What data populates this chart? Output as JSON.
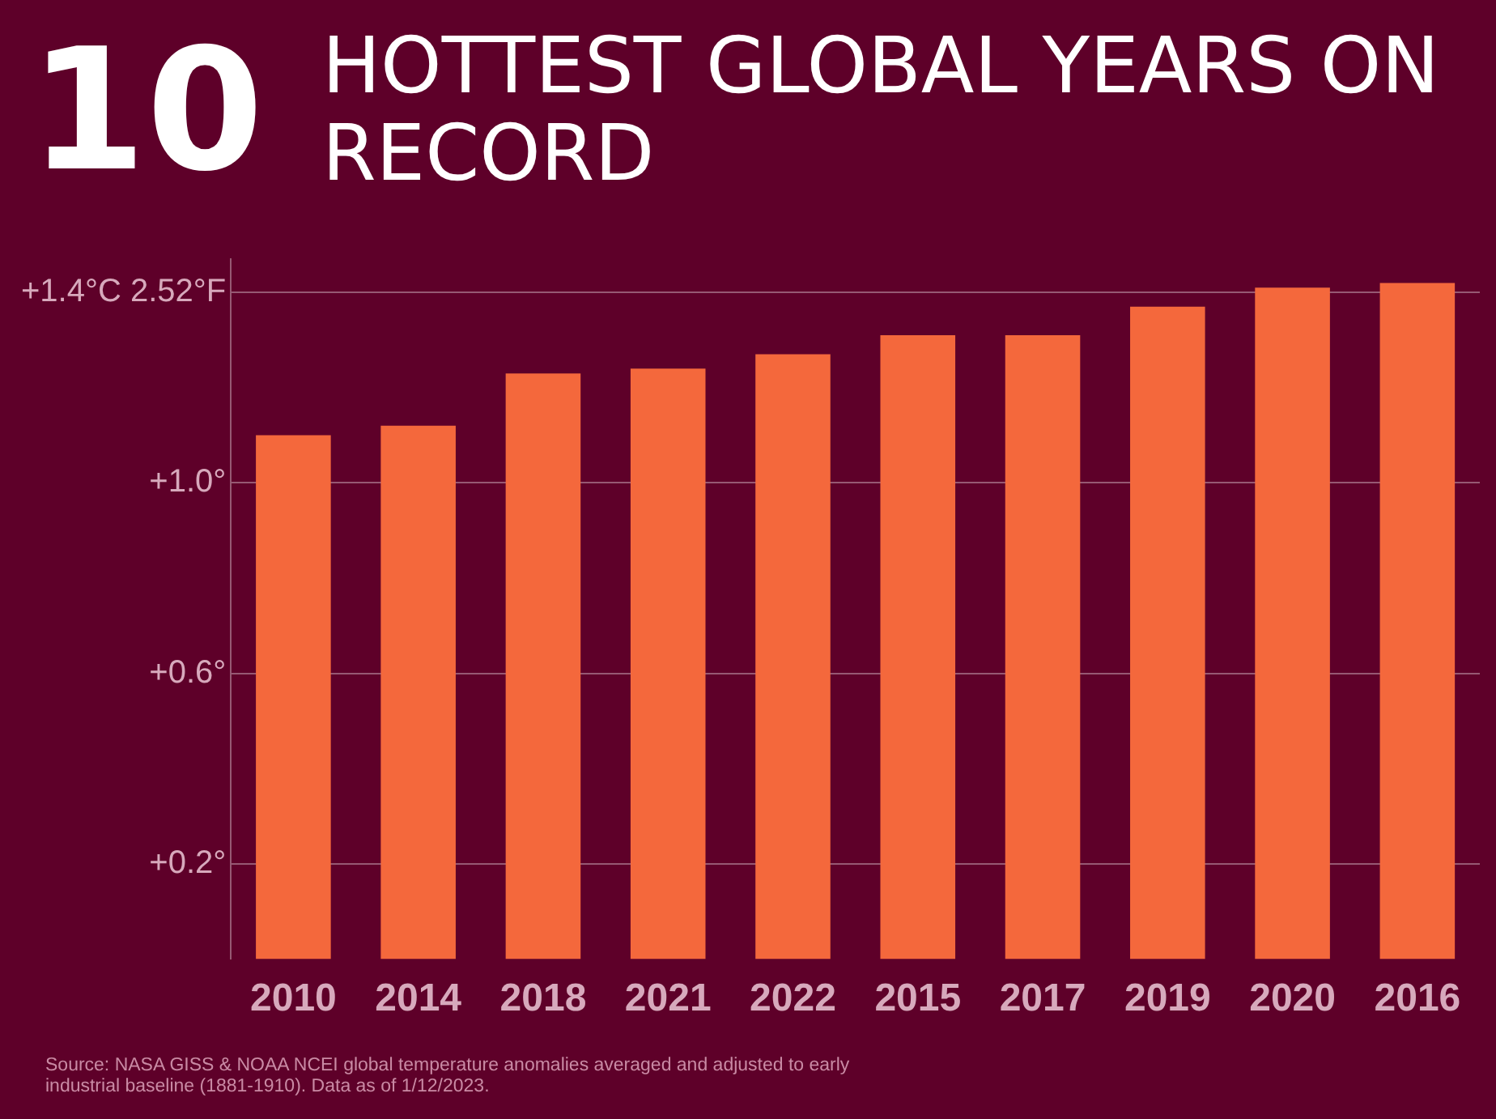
{
  "chart_data": {
    "type": "bar",
    "title": "10 HOTTEST GLOBAL YEARS ON RECORD",
    "categories": [
      "2010",
      "2014",
      "2018",
      "2021",
      "2022",
      "2015",
      "2017",
      "2019",
      "2020",
      "2016"
    ],
    "values": [
      1.1,
      1.12,
      1.23,
      1.24,
      1.27,
      1.31,
      1.31,
      1.37,
      1.41,
      1.42
    ],
    "color": "#f4683c",
    "ylim": [
      0,
      1.47
    ],
    "yticks": [
      {
        "value": 0.2,
        "label": "+0.2°"
      },
      {
        "value": 0.6,
        "label": "+0.6°"
      },
      {
        "value": 1.0,
        "label": "+1.0°"
      },
      {
        "value": 1.4,
        "label": "+1.4°C 2.52°F"
      }
    ],
    "grid": "y",
    "annotations": [
      "Source: NASA GISS & NOAA NCEI global temperature anomalies averaged and adjusted to early industrial baseline (1881-1910). Data as of 1/12/2023."
    ]
  }
}
